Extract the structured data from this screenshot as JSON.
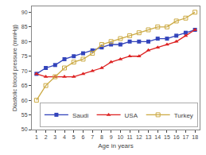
{
  "chart_data": {
    "type": "line",
    "xlabel": "Age in years",
    "ylabel": "Diastolic blood pressure (mmHg)",
    "x": [
      1,
      2,
      3,
      4,
      5,
      6,
      7,
      8,
      9,
      10,
      11,
      12,
      13,
      14,
      15,
      16,
      17,
      18
    ],
    "series": [
      {
        "name": "Saudi",
        "color": "#3344bb",
        "marker": "square",
        "values": [
          69,
          71,
          72,
          74,
          75,
          76,
          77,
          78,
          79,
          79,
          80,
          80,
          80,
          81,
          81,
          82,
          83,
          84
        ]
      },
      {
        "name": "USA",
        "color": "#dd2222",
        "marker": "triangle-up",
        "values": [
          69,
          68,
          68,
          68,
          68,
          69,
          70,
          71,
          73,
          74,
          75,
          75,
          77,
          78,
          79,
          80,
          82,
          84
        ]
      },
      {
        "name": "Turkey",
        "color": "#ccaa44",
        "marker": "square-open",
        "values": [
          60,
          65,
          68,
          71,
          73,
          74,
          76,
          79,
          80,
          81,
          82,
          83,
          84,
          85,
          85,
          87,
          88,
          90
        ]
      }
    ],
    "xlim": [
      0.5,
      18.5
    ],
    "xticks": [
      1,
      2,
      3,
      4,
      5,
      6,
      7,
      8,
      9,
      10,
      11,
      12,
      13,
      14,
      15,
      16,
      17,
      18
    ],
    "ylim": [
      50,
      92
    ],
    "yticks": [
      50,
      55,
      60,
      65,
      70,
      75,
      80,
      85,
      90
    ],
    "grid": false,
    "legend": "lower right"
  }
}
